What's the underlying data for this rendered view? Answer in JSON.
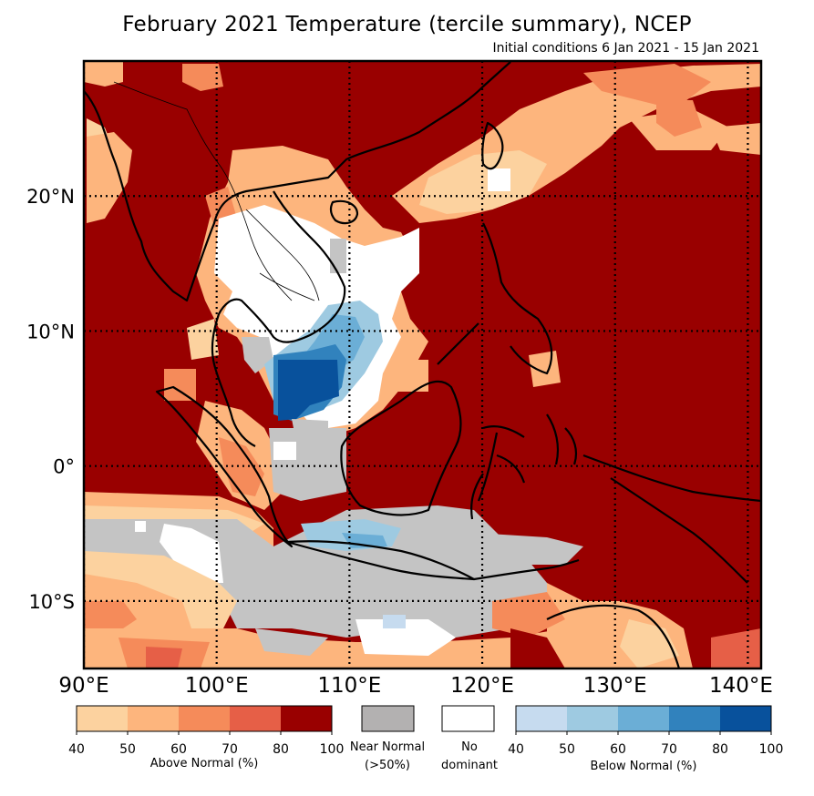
{
  "title": "February 2021 Temperature (tercile summary), NCEP",
  "subtitle": "Initial conditions 6 Jan 2021 - 15 Jan 2021",
  "map": {
    "lon_range": [
      90,
      141
    ],
    "lat_range": [
      -15,
      30
    ],
    "lon_ticks": [
      "90°E",
      "100°E",
      "110°E",
      "120°E",
      "130°E",
      "140°E"
    ],
    "lat_ticks": [
      "20°N",
      "10°N",
      "0°",
      "10°S"
    ]
  },
  "legend": {
    "above": {
      "caption": "Above Normal (%)",
      "colors": [
        "#fcd29f",
        "#fdb57d",
        "#f58b5a",
        "#e65f47",
        "#990000"
      ],
      "ticks": [
        "40",
        "50",
        "60",
        "70",
        "80",
        "100"
      ]
    },
    "near": {
      "line1": "Near Normal",
      "line2": "(>50%)",
      "color": "#b3b1b1"
    },
    "none": {
      "line1": "No",
      "line2": "dominant",
      "color": "#ffffff"
    },
    "below": {
      "caption": "Below Normal (%)",
      "colors": [
        "#c6dbef",
        "#9ecae1",
        "#6baed6",
        "#3182bd",
        "#08519c"
      ],
      "ticks": [
        "40",
        "50",
        "60",
        "70",
        "80",
        "100"
      ]
    }
  },
  "colors": {
    "A80": "#990000",
    "A70": "#e65f47",
    "A60": "#f58b5a",
    "A50": "#fdb57d",
    "A40": "#fcd29f",
    "B50": "#9ecae1",
    "B60": "#6baed6",
    "B70": "#3182bd",
    "B80": "#08519c",
    "N": "#c4c4c4",
    "W": "#ffffff"
  }
}
